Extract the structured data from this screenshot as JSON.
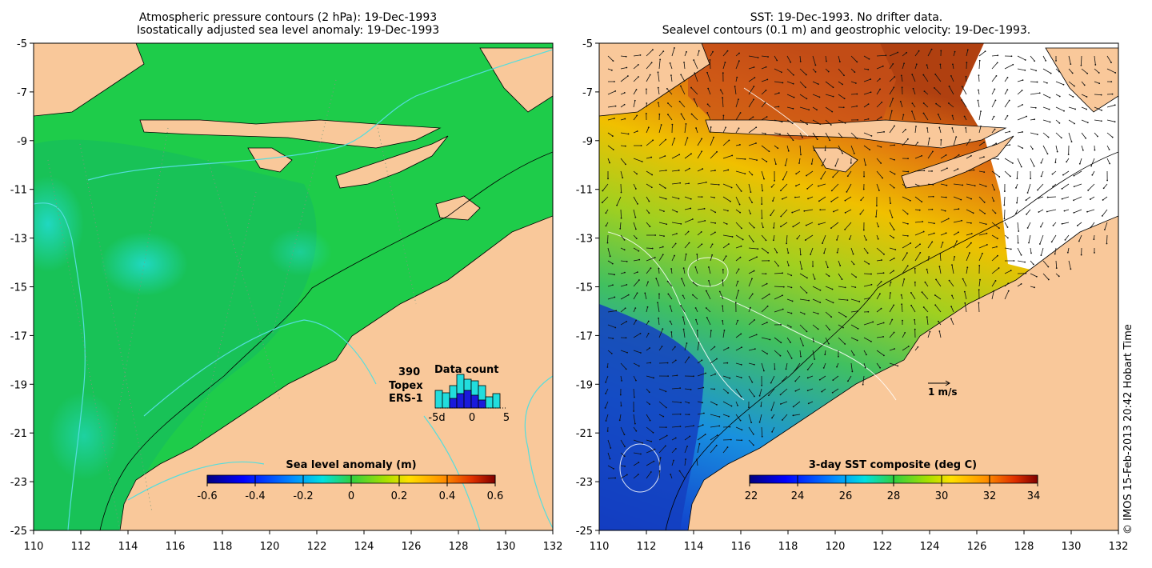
{
  "left_panel": {
    "title_line1": "Atmospheric pressure contours (2 hPa): 19-Dec-1993",
    "title_line2": "Isostatically adjusted sea level anomaly: 19-Dec-1993",
    "colorbar": {
      "title": "Sea level anomaly (m)",
      "ticks": [
        "-0.6",
        "-0.4",
        "-0.2",
        "0",
        "0.2",
        "0.4",
        "0.6"
      ]
    },
    "data_count": {
      "title": "Data count",
      "total": "390",
      "topex_label": "Topex",
      "ers_label": "ERS-1",
      "x_ticks": [
        "-5d",
        "0",
        "5"
      ],
      "topex_color": "#22dddd",
      "ers_color": "#1a1adc"
    }
  },
  "right_panel": {
    "title_line1": "SST: 19-Dec-1993. No drifter data.",
    "title_line2": "Sealevel contours (0.1 m) and geostrophic velocity: 19-Dec-1993.",
    "colorbar": {
      "title": "3-day SST composite (deg C)",
      "ticks": [
        "22",
        "24",
        "26",
        "28",
        "30",
        "32",
        "34"
      ]
    },
    "velocity_scale": "1 m/s"
  },
  "axes": {
    "y_ticks": [
      "-5",
      "-7",
      "-9",
      "-11",
      "-13",
      "-15",
      "-17",
      "-19",
      "-21",
      "-23",
      "-25"
    ],
    "x_ticks": [
      "110",
      "112",
      "114",
      "116",
      "118",
      "120",
      "122",
      "124",
      "126",
      "128",
      "130",
      "132"
    ],
    "lat_range": [
      -25,
      -5
    ],
    "lon_range": [
      110,
      132
    ]
  },
  "credit": "© IMOS 15-Feb-2013 20:42 Hobart Time",
  "colors": {
    "land": "#f9c89a",
    "ocean_green": "#22cc44",
    "colormap": [
      "#00007f",
      "#0000ff",
      "#0080ff",
      "#00ffff",
      "#80ff80",
      "#ffff00",
      "#ff8000",
      "#ff0000",
      "#7f0000"
    ]
  }
}
